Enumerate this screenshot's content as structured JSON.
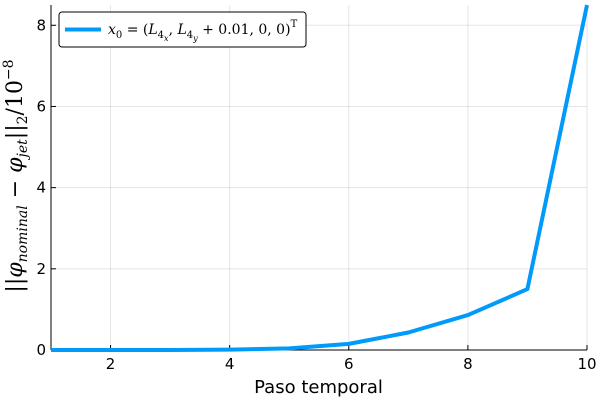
{
  "chart_data": {
    "type": "line",
    "xlabel": "Paso temporal",
    "ylabel": "||φnominal − φjet||2/10−8",
    "ylabel_parts": {
      "open": "||",
      "phi1": "φ",
      "sub1": "nominal",
      "minus": " − ",
      "phi2": "φ",
      "sub2": "jet",
      "close": "||",
      "norm_sub": "2",
      "div": "/10",
      "exp": "−8"
    },
    "xlim": [
      1,
      10
    ],
    "ylim": [
      0,
      8.5
    ],
    "xticks": [
      2,
      4,
      6,
      8,
      10
    ],
    "yticks": [
      0,
      2,
      4,
      6,
      8
    ],
    "grid": true,
    "legend_position": "top-left",
    "legend_parts": {
      "x": "x",
      "x_sub": "0",
      "eq": " = (",
      "L1": "L",
      "L1_sub": "4",
      "L1_subsub": "x",
      "comma1": ", ",
      "L2": "L",
      "L2_sub": "4",
      "L2_subsub": "y",
      "rest": " + 0.01, 0, 0)",
      "sup": "T"
    },
    "series": [
      {
        "name": "x0 = (L4x, L4y + 0.01, 0, 0)T",
        "color": "#009AFA",
        "x": [
          1,
          2,
          3,
          4,
          5,
          6,
          7,
          8,
          9,
          10
        ],
        "y": [
          0.0,
          0.0,
          0.0,
          0.01,
          0.04,
          0.15,
          0.43,
          0.86,
          1.5,
          8.5
        ]
      }
    ]
  }
}
